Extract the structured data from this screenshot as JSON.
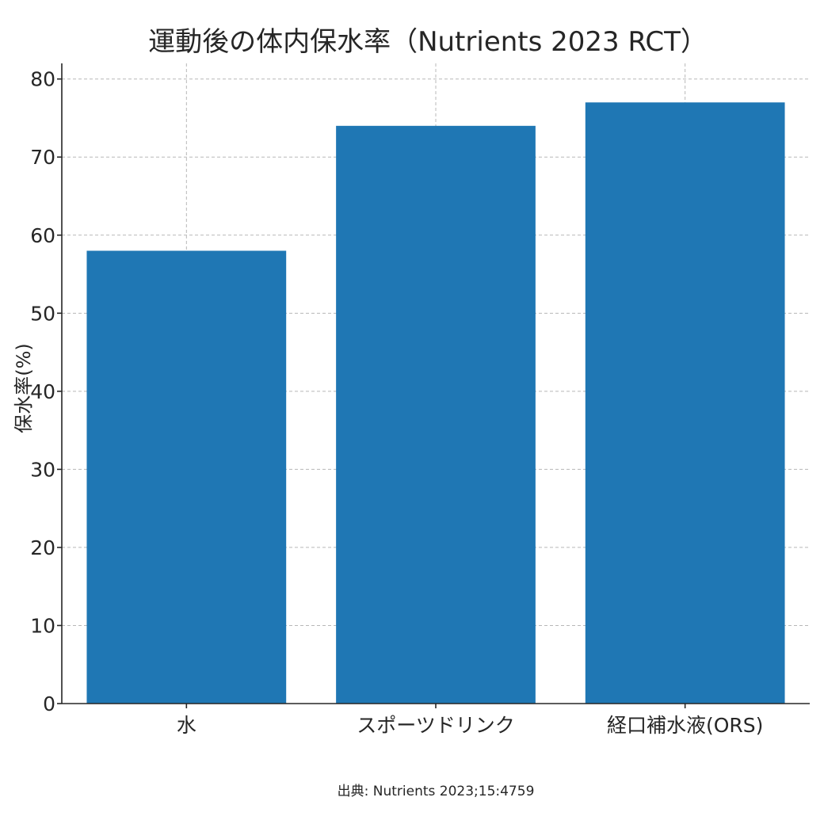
{
  "chart_data": {
    "type": "bar",
    "title": "運動後の体内保水率（Nutrients 2023 RCT）",
    "ylabel": "保水率(%)",
    "xlabel": "",
    "categories": [
      "水",
      "スポーツドリンク",
      "経口補水液(ORS)"
    ],
    "values": [
      58,
      74,
      77
    ],
    "ylim": [
      0,
      82
    ],
    "yticks": [
      0,
      10,
      20,
      30,
      40,
      50,
      60,
      70,
      80
    ],
    "grid": true,
    "bar_color": "#1f77b4",
    "source": "出典: Nutrients 2023;15:4759"
  }
}
